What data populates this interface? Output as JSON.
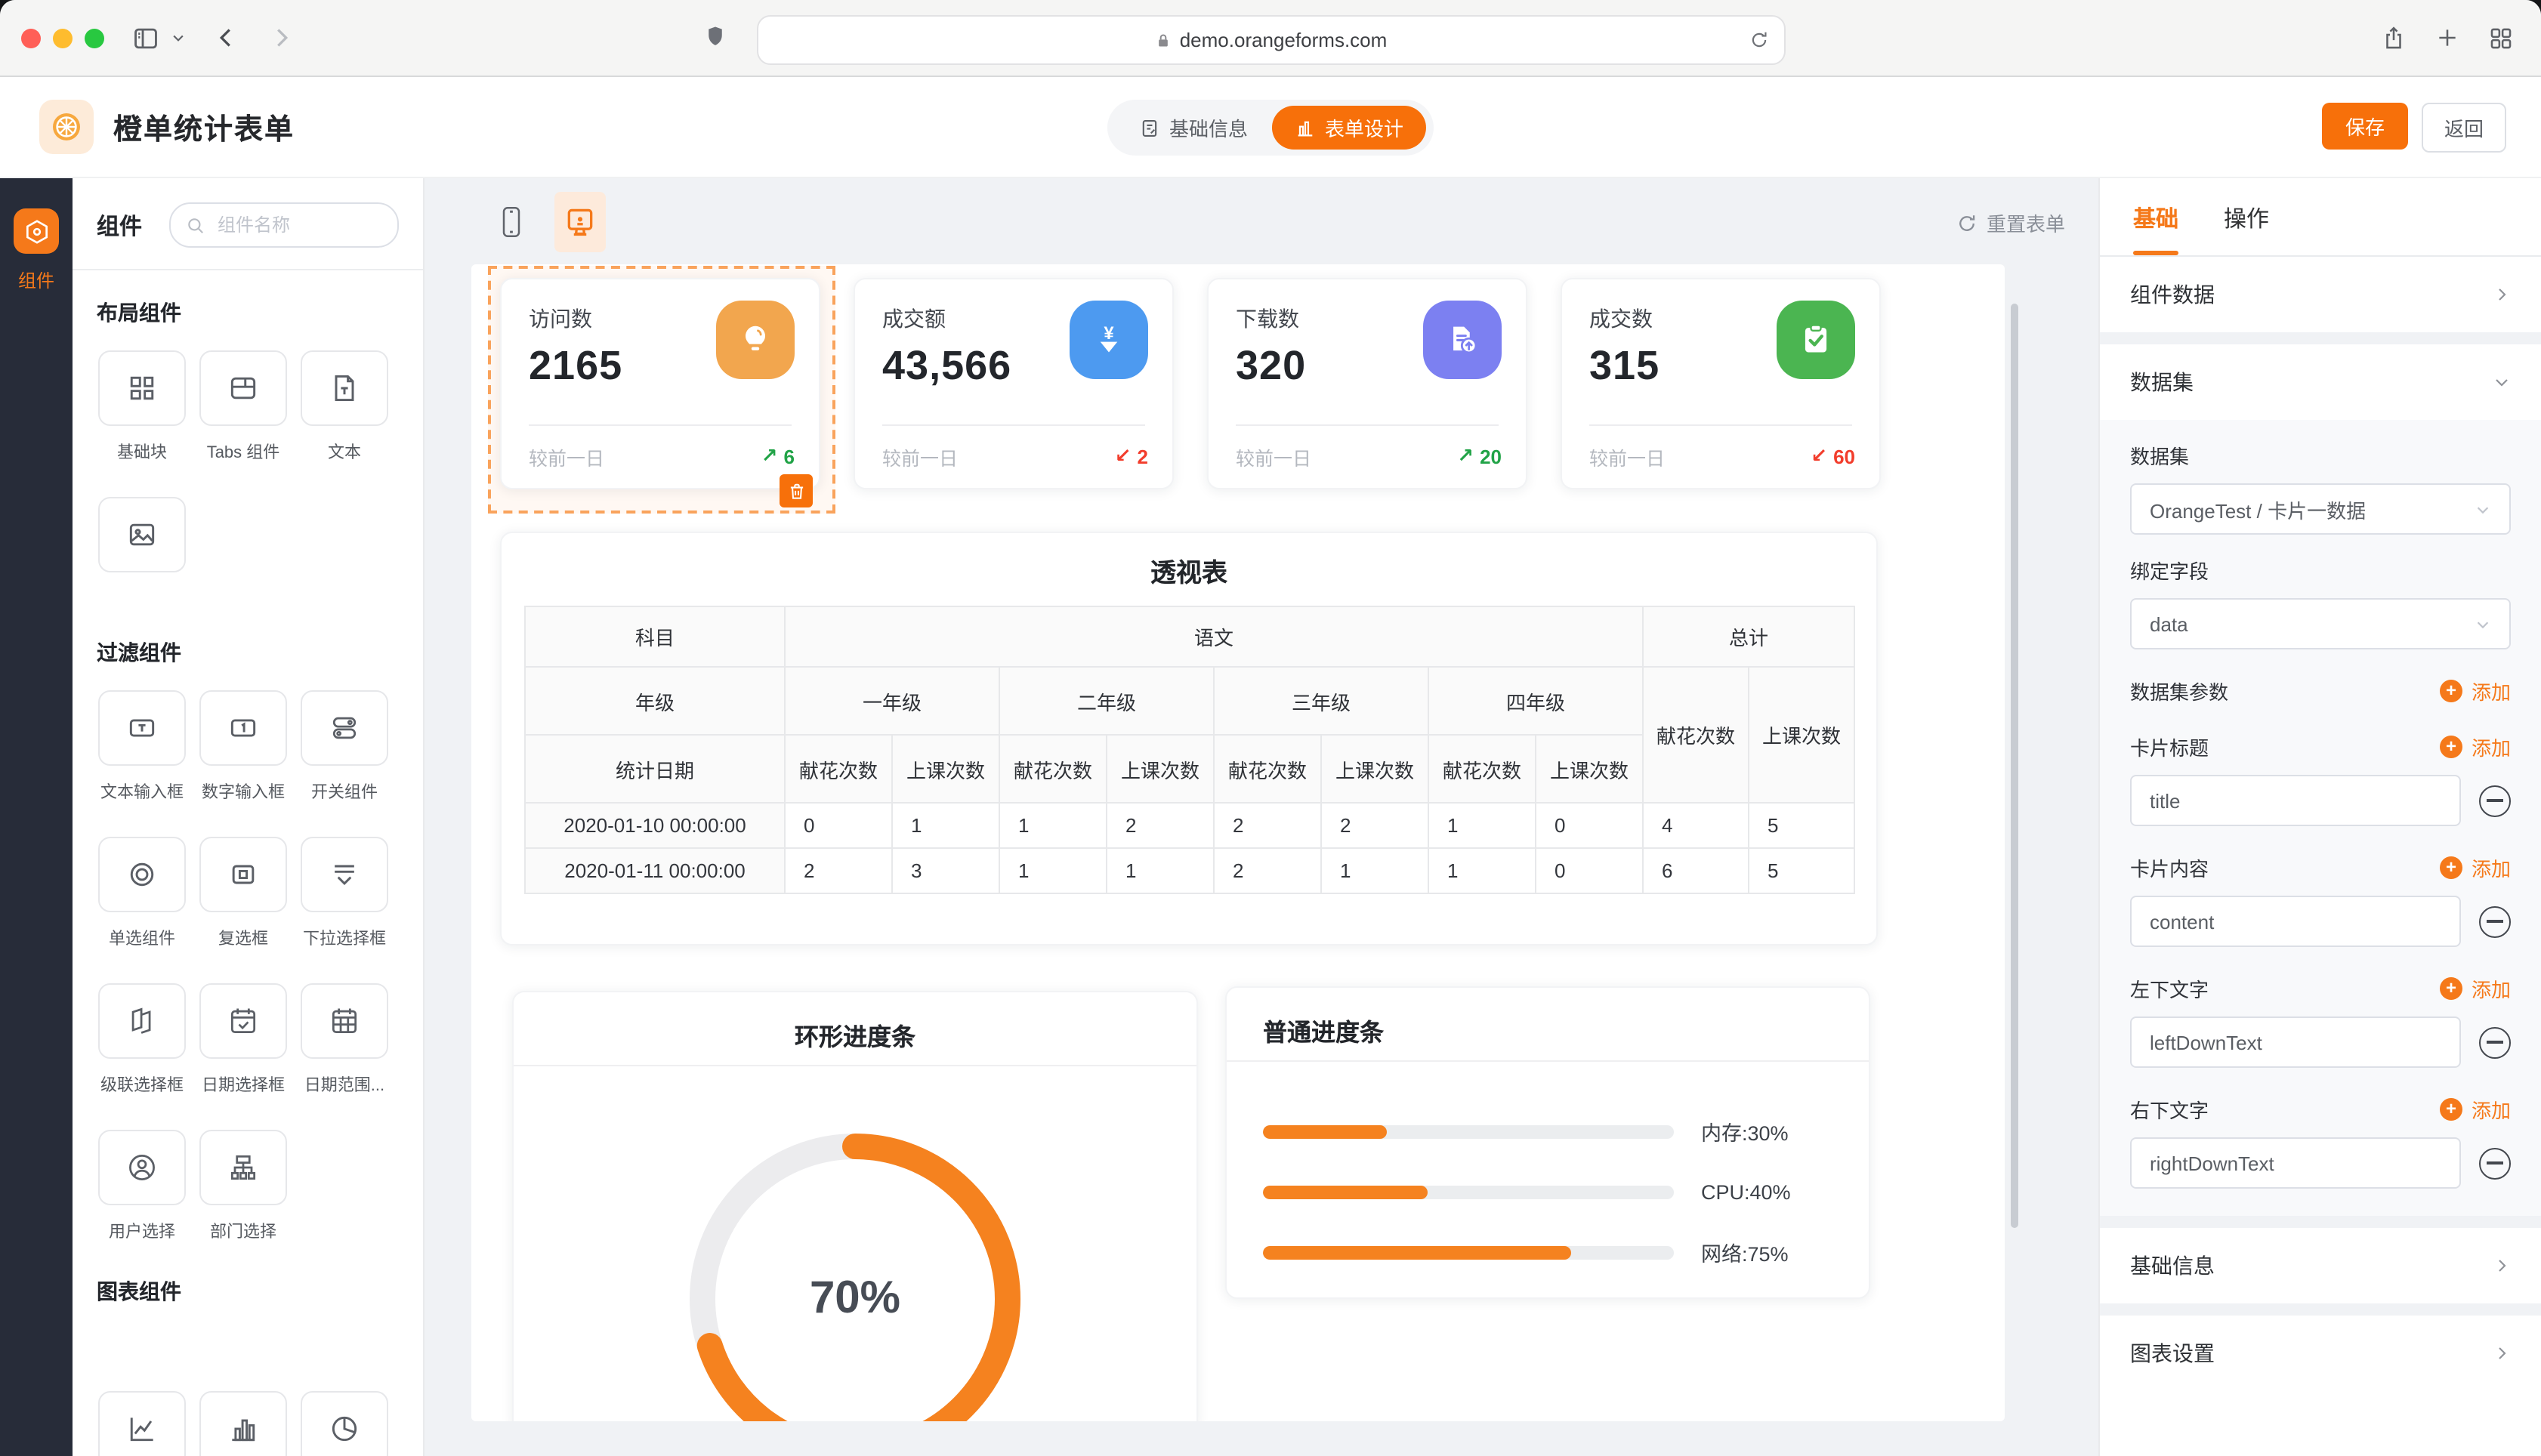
{
  "browser": {
    "url": "demo.orangeforms.com"
  },
  "header": {
    "app_title": "橙单统计表单",
    "tabs": [
      {
        "label": "基础信息"
      },
      {
        "label": "表单设计"
      }
    ],
    "save_label": "保存",
    "back_label": "返回"
  },
  "rail": {
    "label": "组件"
  },
  "panel": {
    "title": "组件",
    "search_placeholder": "组件名称",
    "sections": [
      {
        "label": "布局组件",
        "items": [
          {
            "label": "基础块",
            "icon": "grid-icon"
          },
          {
            "label": "Tabs 组件",
            "icon": "tabs-icon"
          },
          {
            "label": "文本",
            "icon": "text-doc-icon"
          },
          {
            "label": "图片",
            "icon": "image-icon"
          }
        ]
      },
      {
        "label": "过滤组件",
        "items": [
          {
            "label": "文本输入框",
            "icon": "text-input-icon"
          },
          {
            "label": "数字输入框",
            "icon": "number-input-icon"
          },
          {
            "label": "开关组件",
            "icon": "switch-icon"
          },
          {
            "label": "单选组件",
            "icon": "radio-icon"
          },
          {
            "label": "复选框",
            "icon": "checkbox-icon"
          },
          {
            "label": "下拉选择框",
            "icon": "dropdown-icon"
          },
          {
            "label": "级联选择框",
            "icon": "cascade-icon"
          },
          {
            "label": "日期选择框",
            "icon": "date-icon"
          },
          {
            "label": "日期范围...",
            "icon": "date-range-icon"
          },
          {
            "label": "用户选择",
            "icon": "user-icon"
          },
          {
            "label": "部门选择",
            "icon": "org-icon"
          }
        ]
      },
      {
        "label": "图表组件",
        "items": [
          {
            "icon": "line-chart-icon"
          },
          {
            "icon": "bar-chart-icon"
          },
          {
            "icon": "pie-chart-icon"
          }
        ]
      }
    ]
  },
  "canvas": {
    "reset_label": "重置表单",
    "stat_cards": [
      {
        "title": "访问数",
        "value": "2165",
        "compare": "较前一日",
        "trend": "up",
        "arrow": "↗",
        "trend_value": "6",
        "icon": "bulb-icon",
        "color": "#f2a64e"
      },
      {
        "title": "成交额",
        "value": "43,566",
        "compare": "较前一日",
        "trend": "down",
        "arrow": "↙",
        "trend_value": "2",
        "icon": "yen-download-icon",
        "color": "#4d9af0"
      },
      {
        "title": "下载数",
        "value": "320",
        "compare": "较前一日",
        "trend": "up",
        "arrow": "↗",
        "trend_value": "20",
        "icon": "file-upload-icon",
        "color": "#7c80f1"
      },
      {
        "title": "成交数",
        "value": "315",
        "compare": "较前一日",
        "trend": "down",
        "arrow": "↙",
        "trend_value": "60",
        "icon": "clipboard-check-icon",
        "color": "#4bb551"
      }
    ],
    "pivot": {
      "title": "透视表",
      "h1": [
        "科目",
        "语文",
        "总计"
      ],
      "h2": [
        "年级",
        "一年级",
        "二年级",
        "三年级",
        "四年级",
        "献花次数",
        "上课次数"
      ],
      "h3": [
        "统计日期",
        "献花次数",
        "上课次数",
        "献花次数",
        "上课次数",
        "献花次数",
        "上课次数",
        "献花次数",
        "上课次数"
      ],
      "rows": [
        [
          "2020-01-10 00:00:00",
          "0",
          "1",
          "1",
          "2",
          "2",
          "2",
          "1",
          "0",
          "4",
          "5"
        ],
        [
          "2020-01-11 00:00:00",
          "2",
          "3",
          "1",
          "1",
          "2",
          "1",
          "1",
          "0",
          "6",
          "5"
        ]
      ]
    },
    "ring": {
      "title": "环形进度条",
      "percent": 70,
      "label": "70%",
      "color": "#f5821f"
    },
    "progress": {
      "title": "普通进度条",
      "bars": [
        {
          "label": "内存:30%",
          "percent": 30
        },
        {
          "label": "CPU:40%",
          "percent": 40
        },
        {
          "label": "网络:75%",
          "percent": 75
        }
      ],
      "bar_color": "#f5821f"
    }
  },
  "inspector": {
    "tabs": [
      {
        "label": "基础"
      },
      {
        "label": "操作"
      }
    ],
    "rows": {
      "component_data": "组件数据",
      "dataset_group": "数据集",
      "basic_info": "基础信息",
      "chart_settings": "图表设置"
    },
    "fields": {
      "dataset_label": "数据集",
      "dataset_value": "OrangeTest / 卡片一数据",
      "bind_field_label": "绑定字段",
      "bind_field_value": "data",
      "dataset_params_label": "数据集参数",
      "card_title_label": "卡片标题",
      "card_title_value": "title",
      "card_content_label": "卡片内容",
      "card_content_value": "content",
      "left_down_label": "左下文字",
      "left_down_value": "leftDownText",
      "right_down_label": "右下文字",
      "right_down_value": "rightDownText",
      "add_label": "添加"
    },
    "accent_color": "#f5791a"
  }
}
